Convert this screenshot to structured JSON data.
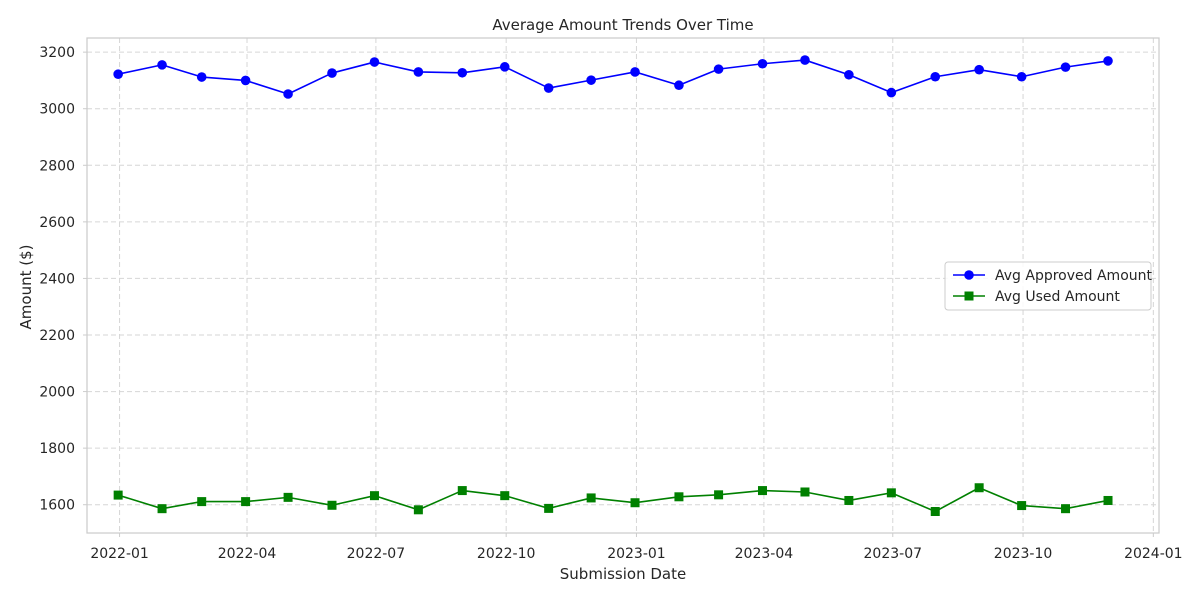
{
  "chart_data": {
    "type": "line",
    "title": "Average Amount Trends Over Time",
    "xlabel": "Submission Date",
    "ylabel": "Amount ($)",
    "ylim": [
      1500,
      3250
    ],
    "xlim": [
      "2021-12-09",
      "2024-01-05"
    ],
    "x": [
      "2021-12-31",
      "2022-01-31",
      "2022-02-28",
      "2022-03-31",
      "2022-04-30",
      "2022-05-31",
      "2022-06-30",
      "2022-07-31",
      "2022-08-31",
      "2022-09-30",
      "2022-10-31",
      "2022-11-30",
      "2022-12-31",
      "2023-01-31",
      "2023-02-28",
      "2023-03-31",
      "2023-04-30",
      "2023-05-31",
      "2023-06-30",
      "2023-07-31",
      "2023-08-31",
      "2023-09-30",
      "2023-10-31",
      "2023-11-30"
    ],
    "x_ticks": [
      {
        "date": "2022-01-01",
        "label": "2022-01"
      },
      {
        "date": "2022-04-01",
        "label": "2022-04"
      },
      {
        "date": "2022-07-01",
        "label": "2022-07"
      },
      {
        "date": "2022-10-01",
        "label": "2022-10"
      },
      {
        "date": "2023-01-01",
        "label": "2023-01"
      },
      {
        "date": "2023-04-01",
        "label": "2023-04"
      },
      {
        "date": "2023-07-01",
        "label": "2023-07"
      },
      {
        "date": "2023-10-01",
        "label": "2023-10"
      },
      {
        "date": "2024-01-01",
        "label": "2024-01"
      }
    ],
    "y_ticks": [
      1600,
      1800,
      2000,
      2200,
      2400,
      2600,
      2800,
      3000,
      3200
    ],
    "grid": true,
    "legend_position": "center-right",
    "series": [
      {
        "name": "Avg Approved Amount",
        "color": "#0000ff",
        "marker": "circle",
        "values": [
          3122,
          3155,
          3112,
          3100,
          3052,
          3126,
          3165,
          3130,
          3127,
          3148,
          3073,
          3101,
          3130,
          3083,
          3140,
          3159,
          3172,
          3120,
          3057,
          3113,
          3138,
          3113,
          3147,
          3169
        ]
      },
      {
        "name": "Avg Used Amount",
        "color": "#008000",
        "marker": "square",
        "values": [
          1634,
          1586,
          1611,
          1611,
          1626,
          1598,
          1632,
          1582,
          1650,
          1632,
          1587,
          1624,
          1607,
          1628,
          1635,
          1650,
          1645,
          1615,
          1642,
          1576,
          1660,
          1597,
          1586,
          1615
        ]
      }
    ]
  }
}
